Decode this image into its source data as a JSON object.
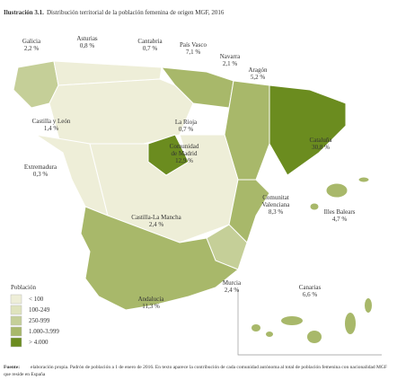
{
  "title": {
    "number": "Ilustración 3.1.",
    "text": "Distribución territorial de la población femenina de origen MGF, 2016"
  },
  "regions": [
    {
      "name": "Galicia",
      "value": "2,2 %"
    },
    {
      "name": "Asturias",
      "value": "0,8 %"
    },
    {
      "name": "Cantabria",
      "value": "0,7 %"
    },
    {
      "name": "País Vasco",
      "value": "7,1 %"
    },
    {
      "name": "Navarra",
      "value": "2,1 %"
    },
    {
      "name": "Aragón",
      "value": "5,2 %"
    },
    {
      "name": "Castilla y León",
      "value": "1,4 %"
    },
    {
      "name": "La Rioja",
      "value": "0,7 %"
    },
    {
      "name": "Cataluña",
      "value": "30,8 %"
    },
    {
      "name": "Extremadura",
      "value": "0,3 %"
    },
    {
      "name": "Comunidad de Madrid",
      "value": "12,9 %"
    },
    {
      "name": "Comunitat Valenciana",
      "value": "8,3 %"
    },
    {
      "name": "Illes Balears",
      "value": "4,7 %"
    },
    {
      "name": "Castilla-La Mancha",
      "value": "2,4 %"
    },
    {
      "name": "Murcia",
      "value": "2,4 %"
    },
    {
      "name": "Andalucía",
      "value": "11,3 %"
    },
    {
      "name": "Canarias",
      "value": "6,6 %"
    }
  ],
  "legend": {
    "title": "Población",
    "items": [
      "< 100",
      "100-249",
      "250-999",
      "1.000-3.999",
      "> 4.000"
    ]
  },
  "source": {
    "label": "Fuente:",
    "text": "elaboración propia. Padrón de población a 1 de enero de 2016. En texto aparece la contribución de cada comunidad autónoma al total de población femenina con nacionalidad MGF que reside en España"
  }
}
